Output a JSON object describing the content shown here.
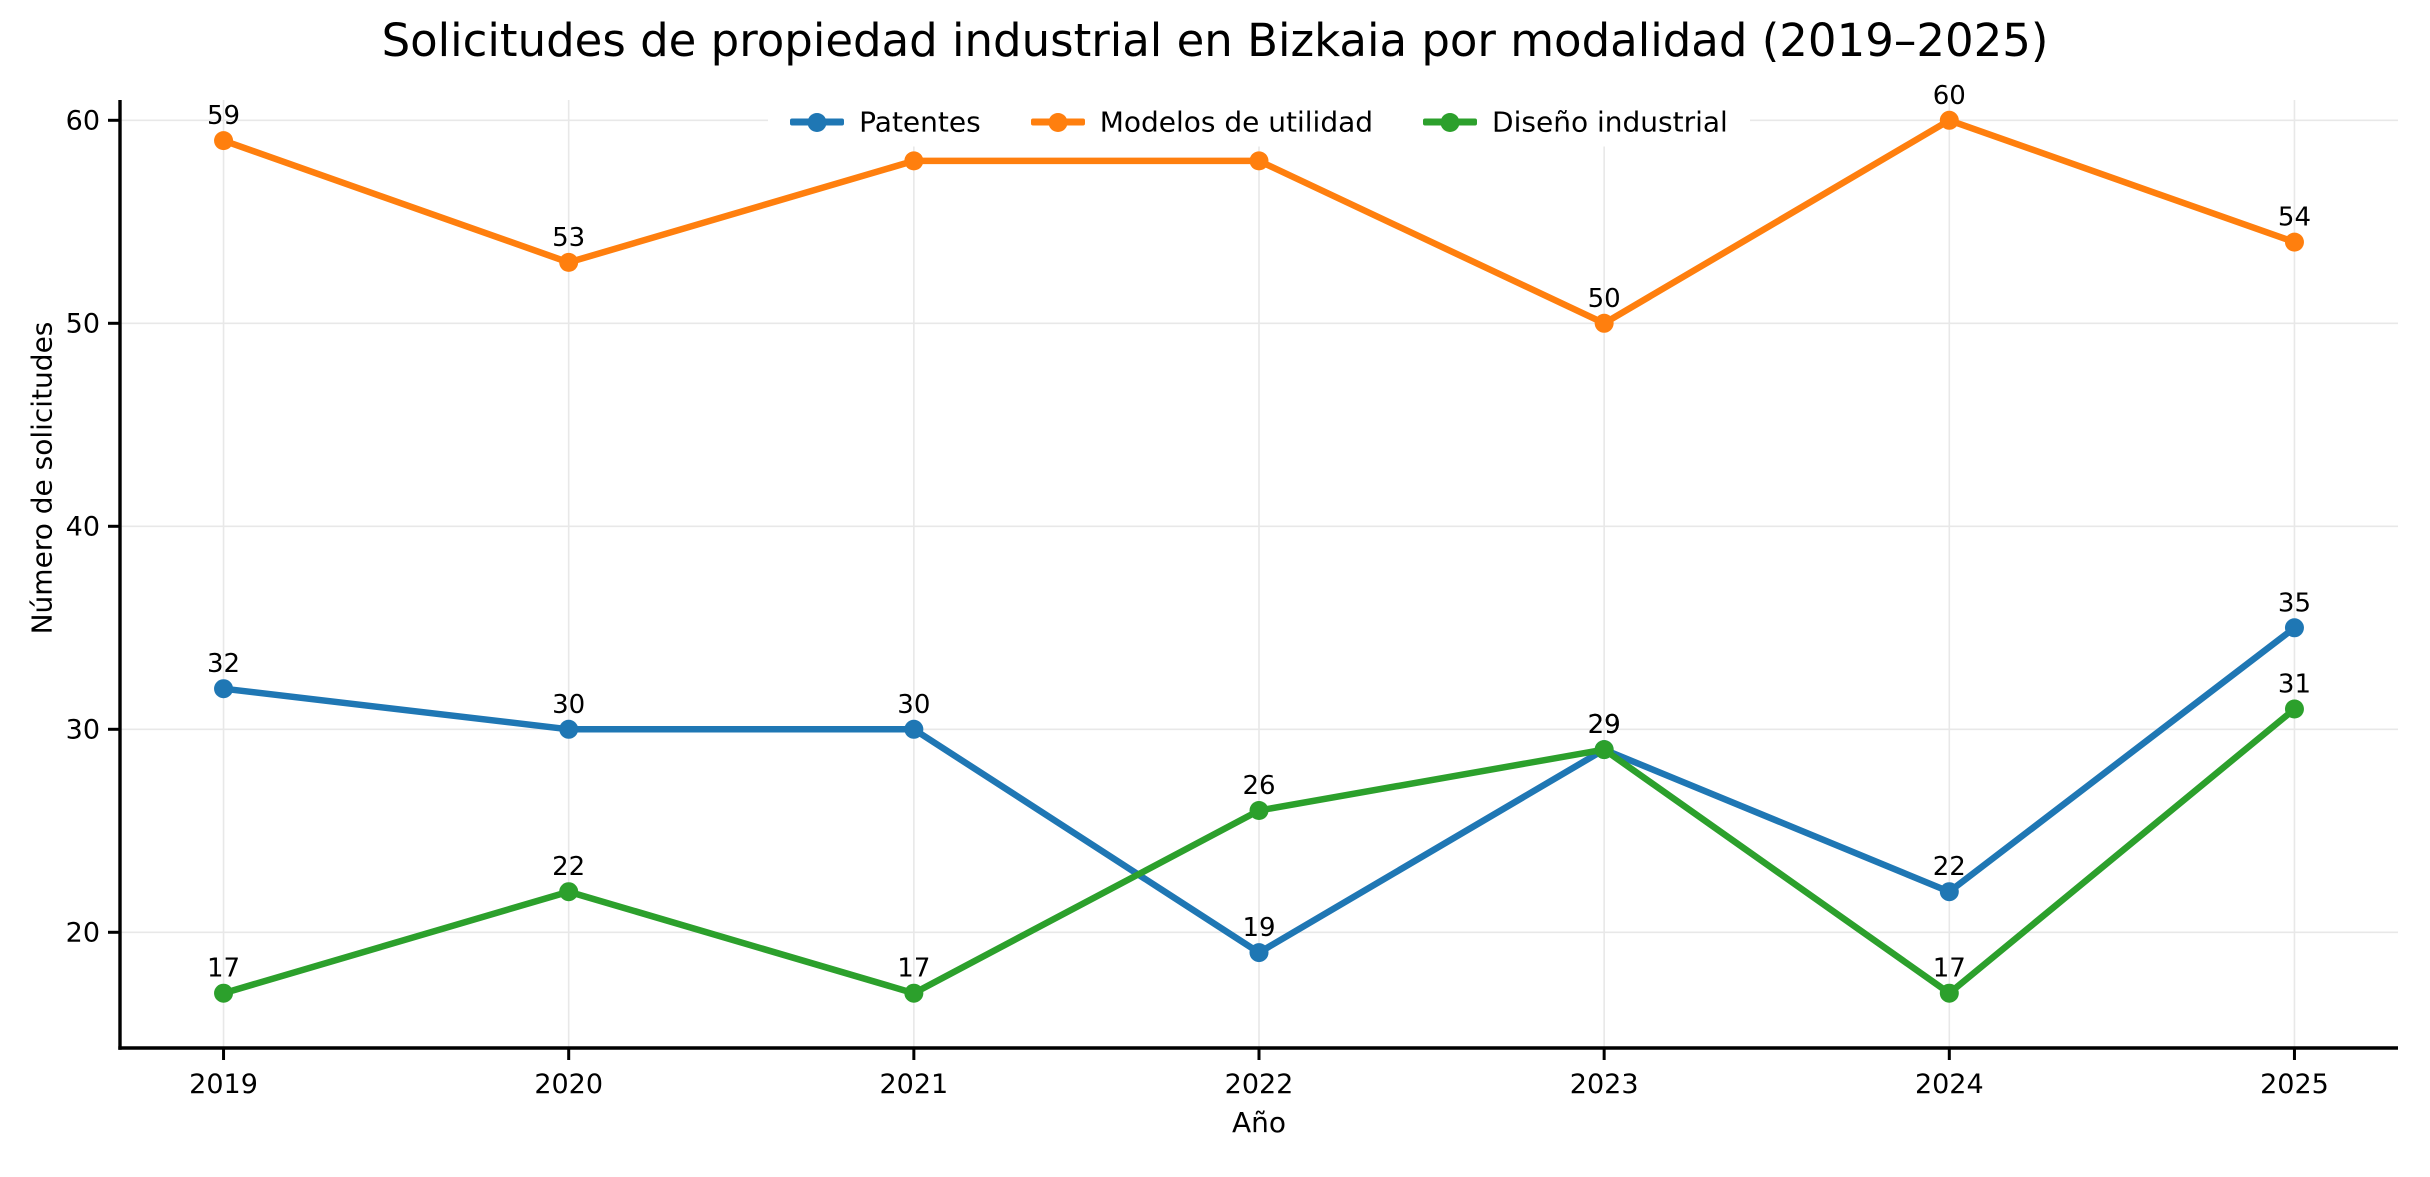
{
  "chart_data": {
    "type": "line",
    "title": "Solicitudes de propiedad industrial en Bizkaia por modalidad (2019–2025)",
    "xlabel": "Año",
    "ylabel": "Número de solicitudes",
    "x": [
      2019,
      2020,
      2021,
      2022,
      2023,
      2024,
      2025
    ],
    "series": [
      {
        "name": "Patentes",
        "color": "#1f77b4",
        "values": [
          32,
          30,
          30,
          19,
          29,
          22,
          35
        ]
      },
      {
        "name": "Modelos de utilidad",
        "color": "#ff7f0e",
        "values": [
          59,
          53,
          58,
          58,
          50,
          60,
          54
        ]
      },
      {
        "name": "Diseño industrial",
        "color": "#2ca02c",
        "values": [
          17,
          22,
          17,
          26,
          29,
          17,
          31
        ]
      }
    ],
    "yticks": [
      20,
      30,
      40,
      50,
      60
    ],
    "xlim": [
      2018.7,
      2025.3
    ],
    "ylim": [
      14.3,
      61.0
    ],
    "grid": true,
    "point_labels": true,
    "legend_position": "upper center",
    "colors": {
      "spine": "#000000",
      "grid": "#e8e8e8",
      "text": "#000000",
      "background": "#ffffff"
    }
  }
}
